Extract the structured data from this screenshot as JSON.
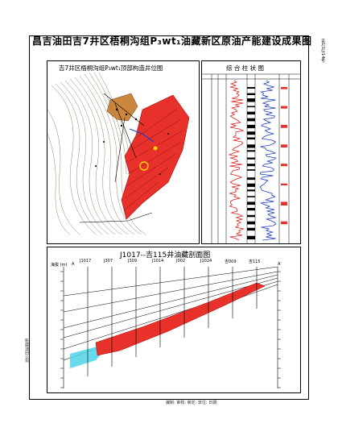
{
  "title": "昌吉油田吉7井区梧桐沟组P₃wt₁油藏新区原油产能建设成果图",
  "map_panel": {
    "title": "吉7井区梧桐沟组P₃wt₁顶部构造井位图"
  },
  "log_panel": {
    "title": "综 合 柱 状 图"
  },
  "section_panel": {
    "title": "J1017--吉115井油藏剖面图",
    "left_marker": "A",
    "right_marker": "A'",
    "well_labels": [
      "J1017",
      "J307",
      "J309",
      "J1014",
      "J002",
      "J1024",
      "吉009",
      "吉115"
    ],
    "depth_unit": "海拔 (m)"
  },
  "side_stamp": "新疆油田公司",
  "right_edge_text": "吉1|1行14号",
  "footer": "编制: 审核: 审定: 单位: 日期:",
  "colors": {
    "oil_red": "#e8312b",
    "water_blue": "#4fd3e8",
    "log_blue": "#1f3fbf",
    "log_red": "#d9231f",
    "fault_brown": "#c06a10"
  }
}
